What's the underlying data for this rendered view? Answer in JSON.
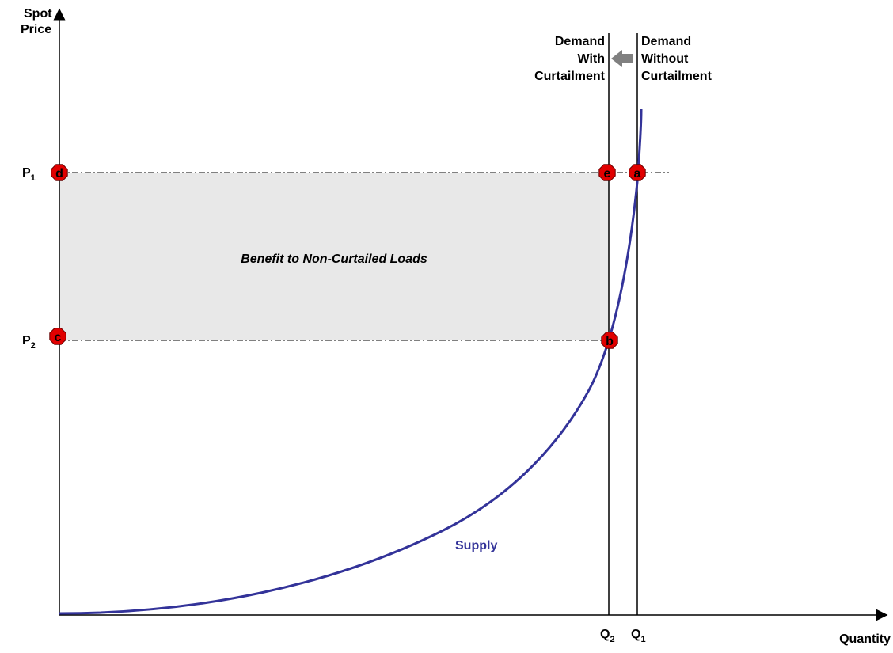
{
  "axes": {
    "y_label": [
      "Spot",
      "Price"
    ],
    "x_label": "Quantity"
  },
  "price_levels": [
    {
      "base": "P",
      "sub": "1"
    },
    {
      "base": "P",
      "sub": "2"
    }
  ],
  "quantity_levels": [
    {
      "base": "Q",
      "sub": "2"
    },
    {
      "base": "Q",
      "sub": "1"
    }
  ],
  "demand_labels": [
    [
      "Demand",
      "With",
      "Curtailment"
    ],
    [
      "Demand",
      "Without",
      "Curtailment"
    ]
  ],
  "area_label": "Benefit to Non-Curtailed Loads",
  "curve_label": "Supply",
  "points": [
    {
      "label": "d"
    },
    {
      "label": "e"
    },
    {
      "label": "a"
    },
    {
      "label": "c"
    },
    {
      "label": "b"
    }
  ]
}
